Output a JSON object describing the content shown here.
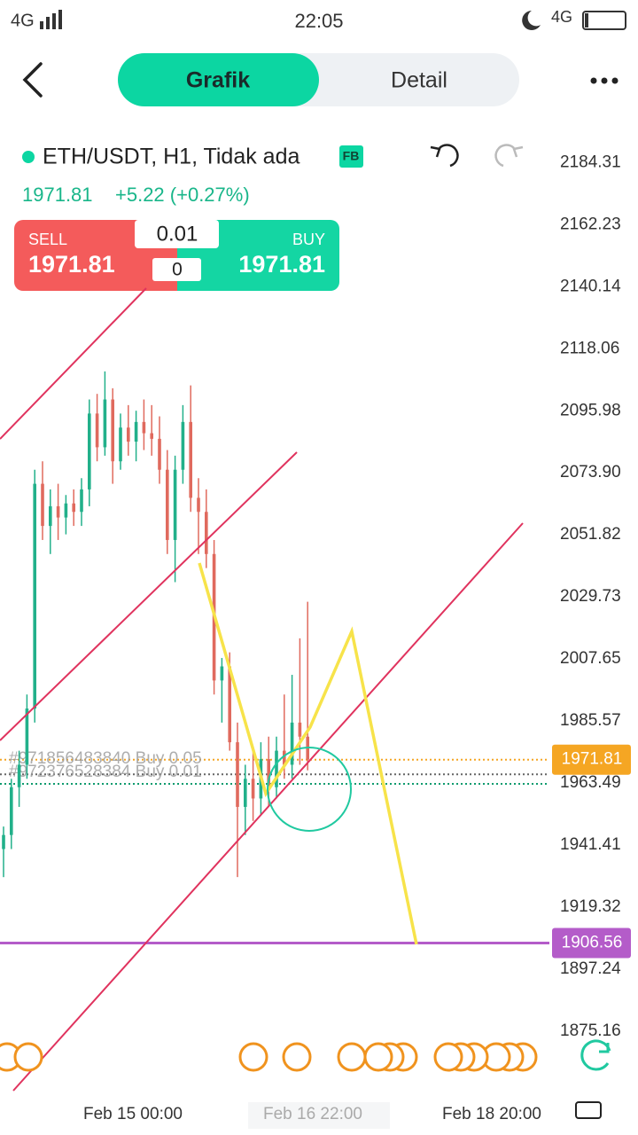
{
  "status_bar": {
    "network_left": "4G",
    "time": "22:05",
    "network_right": "4G"
  },
  "tabs": [
    "Grafik",
    "Detail"
  ],
  "symbol": {
    "name": "ETH/USDT, H1, Tidak ada",
    "badge": "FB",
    "price": 1971.81,
    "change": "+5.22 (+0.27%)"
  },
  "trade_panel": {
    "sell_label": "SELL",
    "sell_price": 1971.81,
    "lot": "0.01",
    "spread": 0,
    "buy_label": "BUY",
    "buy_price": 1971.81
  },
  "chart_data": {
    "type": "candlestick",
    "ylim": [
      1854,
      2198
    ],
    "yticks": [
      2184.31,
      2162.23,
      2140.14,
      2118.06,
      2095.98,
      {
        "value": 2073.9,
        "label": "2073.90"
      },
      2051.82,
      2029.73,
      2007.65,
      1985.57,
      1963.49,
      1941.41,
      1919.32,
      1897.24,
      1875.16
    ],
    "x_labels": [
      "Feb 15 00:00",
      "Feb 16 22:00",
      "Feb 18 20:00"
    ],
    "up_color": "#22b08a",
    "down_color": "#e06a5e",
    "candles": [
      {
        "o": 1940,
        "h": 1948,
        "l": 1930,
        "c": 1945
      },
      {
        "o": 1945,
        "h": 1965,
        "l": 1940,
        "c": 1962
      },
      {
        "o": 1962,
        "h": 1975,
        "l": 1955,
        "c": 1970
      },
      {
        "o": 1970,
        "h": 1995,
        "l": 1965,
        "c": 1990
      },
      {
        "o": 1990,
        "h": 2075,
        "l": 1985,
        "c": 2070
      },
      {
        "o": 2070,
        "h": 2078,
        "l": 2050,
        "c": 2055
      },
      {
        "o": 2055,
        "h": 2068,
        "l": 2045,
        "c": 2062
      },
      {
        "o": 2062,
        "h": 2070,
        "l": 2050,
        "c": 2058
      },
      {
        "o": 2058,
        "h": 2066,
        "l": 2052,
        "c": 2063
      },
      {
        "o": 2063,
        "h": 2068,
        "l": 2055,
        "c": 2060
      },
      {
        "o": 2060,
        "h": 2072,
        "l": 2055,
        "c": 2068
      },
      {
        "o": 2068,
        "h": 2100,
        "l": 2062,
        "c": 2095
      },
      {
        "o": 2095,
        "h": 2102,
        "l": 2078,
        "c": 2083
      },
      {
        "o": 2083,
        "h": 2110,
        "l": 2080,
        "c": 2100
      },
      {
        "o": 2100,
        "h": 2104,
        "l": 2070,
        "c": 2078
      },
      {
        "o": 2078,
        "h": 2095,
        "l": 2075,
        "c": 2090
      },
      {
        "o": 2090,
        "h": 2098,
        "l": 2080,
        "c": 2085
      },
      {
        "o": 2085,
        "h": 2096,
        "l": 2078,
        "c": 2092
      },
      {
        "o": 2092,
        "h": 2100,
        "l": 2082,
        "c": 2088
      },
      {
        "o": 2088,
        "h": 2098,
        "l": 2080,
        "c": 2086
      },
      {
        "o": 2086,
        "h": 2094,
        "l": 2070,
        "c": 2075
      },
      {
        "o": 2075,
        "h": 2082,
        "l": 2045,
        "c": 2050
      },
      {
        "o": 2050,
        "h": 2080,
        "l": 2035,
        "c": 2075
      },
      {
        "o": 2075,
        "h": 2098,
        "l": 2070,
        "c": 2092
      },
      {
        "o": 2092,
        "h": 2105,
        "l": 2060,
        "c": 2065
      },
      {
        "o": 2065,
        "h": 2072,
        "l": 2045,
        "c": 2060
      },
      {
        "o": 2060,
        "h": 2068,
        "l": 2040,
        "c": 2045
      },
      {
        "o": 2045,
        "h": 2050,
        "l": 1995,
        "c": 2000
      },
      {
        "o": 2000,
        "h": 2008,
        "l": 1985,
        "c": 2005
      },
      {
        "o": 2005,
        "h": 2010,
        "l": 1975,
        "c": 1978
      },
      {
        "o": 1978,
        "h": 1985,
        "l": 1930,
        "c": 1955
      },
      {
        "o": 1955,
        "h": 1970,
        "l": 1945,
        "c": 1965
      },
      {
        "o": 1965,
        "h": 1975,
        "l": 1950,
        "c": 1958
      },
      {
        "o": 1958,
        "h": 1978,
        "l": 1952,
        "c": 1972
      },
      {
        "o": 1972,
        "h": 1980,
        "l": 1955,
        "c": 1962
      },
      {
        "o": 1962,
        "h": 1980,
        "l": 1958,
        "c": 1975
      },
      {
        "o": 1975,
        "h": 1995,
        "l": 1965,
        "c": 1970
      },
      {
        "o": 1970,
        "h": 2002,
        "l": 1965,
        "c": 1985
      },
      {
        "o": 1985,
        "h": 2015,
        "l": 1970,
        "c": 1980
      },
      {
        "o": 1980,
        "h": 2028,
        "l": 1968,
        "c": 1971.81
      }
    ],
    "orders": [
      {
        "label": "#971856483840 Buy 0.05",
        "price": 1966.6
      },
      {
        "label": "#972376528384 Buy 0.01",
        "price": 1963.2
      }
    ],
    "price_tags": [
      {
        "value": 1971.81,
        "color": "#f5a623",
        "line": "dotted"
      },
      {
        "value": 1906.56,
        "color": "#b45cc9",
        "line": "solid"
      }
    ]
  }
}
